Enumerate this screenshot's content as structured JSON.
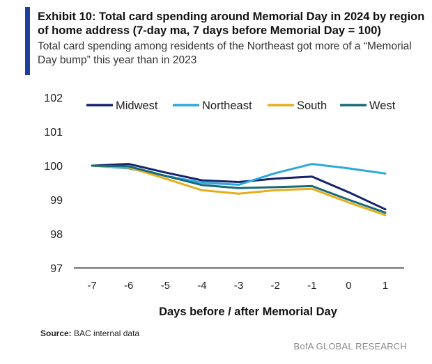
{
  "header": {
    "title": "Exhibit 10: Total card spending around Memorial Day in 2024 by region of home address (7-day ma, 7 days before Memorial Day = 100)",
    "subtitle": "Total card spending among residents of the Northeast got more of a “Memorial Day bump” this year than in 2023",
    "accent_color": "#1f3d9a"
  },
  "footer": {
    "source_label": "Source:",
    "source_text": "BAC internal data",
    "brand": "BofA GLOBAL RESEARCH"
  },
  "chart_data": {
    "type": "line",
    "title": "",
    "xlabel": "Days before / after Memorial Day",
    "ylabel": "",
    "x": [
      -7,
      -6,
      -5,
      -4,
      -3,
      -2,
      -1,
      0,
      1
    ],
    "ylim": [
      97,
      102
    ],
    "yticks": [
      97,
      98,
      99,
      100,
      101,
      102
    ],
    "grid": false,
    "legend_position": "top",
    "series": [
      {
        "name": "Midwest",
        "color": "#14236b",
        "values": [
          100.0,
          100.05,
          99.8,
          99.57,
          99.52,
          99.62,
          99.68,
          99.22,
          98.72
        ]
      },
      {
        "name": "Northeast",
        "color": "#2aa8dc",
        "values": [
          100.0,
          99.92,
          99.7,
          99.5,
          99.44,
          99.78,
          100.05,
          99.92,
          99.77
        ]
      },
      {
        "name": "South",
        "color": "#e7ad1b",
        "values": [
          100.0,
          99.95,
          99.62,
          99.28,
          99.18,
          99.28,
          99.32,
          98.92,
          98.55
        ]
      },
      {
        "name": "West",
        "color": "#176a78",
        "values": [
          100.0,
          99.98,
          99.7,
          99.43,
          99.34,
          99.37,
          99.4,
          99.0,
          98.62
        ]
      }
    ]
  }
}
